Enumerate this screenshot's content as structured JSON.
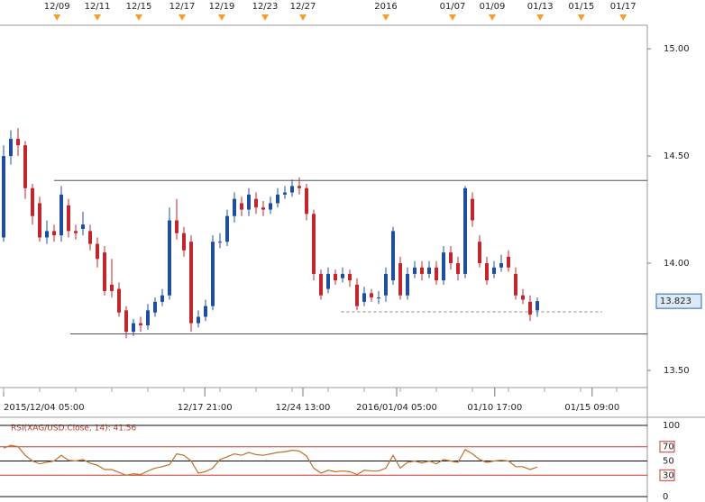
{
  "chart_data": [
    {
      "type": "candlestick",
      "open": [
        14.12,
        14.5,
        14.58,
        14.55,
        14.35,
        14.28,
        14.12,
        14.15,
        14.13,
        14.27,
        14.15,
        14.16,
        14.15,
        14.09,
        14.05,
        13.9,
        13.88,
        13.78,
        13.68,
        13.72,
        13.71,
        13.77,
        13.82,
        13.85,
        14.2,
        14.14,
        14.1,
        13.72,
        13.75,
        13.8,
        14.1,
        14.1,
        14.22,
        14.28,
        14.25,
        14.3,
        14.26,
        14.25,
        14.28,
        14.32,
        14.33,
        14.36,
        14.35,
        14.23,
        13.95,
        13.88,
        13.95,
        13.93,
        13.95,
        13.9,
        13.82,
        13.86,
        13.84,
        13.85,
        13.92,
        14.0,
        13.85,
        13.95,
        13.98,
        13.95,
        13.98,
        13.92,
        14.05,
        14.0,
        13.95,
        14.3,
        14.1,
        14.0,
        13.95,
        13.98,
        14.03,
        13.95,
        13.85,
        13.82,
        13.78
      ],
      "high": [
        14.55,
        14.62,
        14.63,
        14.57,
        14.37,
        14.31,
        14.2,
        14.18,
        14.36,
        14.3,
        14.18,
        14.24,
        14.18,
        14.12,
        14.08,
        14.02,
        13.91,
        13.8,
        13.74,
        13.75,
        13.81,
        13.84,
        13.88,
        14.26,
        14.3,
        14.17,
        14.13,
        13.78,
        13.83,
        14.13,
        14.14,
        14.25,
        14.33,
        14.31,
        14.35,
        14.33,
        14.29,
        14.31,
        14.35,
        14.36,
        14.39,
        14.4,
        14.37,
        14.25,
        13.97,
        13.98,
        13.97,
        13.98,
        13.97,
        13.93,
        13.89,
        13.88,
        13.87,
        13.98,
        14.17,
        14.03,
        13.98,
        14.01,
        14.01,
        14.01,
        14.01,
        14.08,
        14.08,
        14.03,
        14.36,
        14.33,
        14.13,
        14.03,
        14.01,
        14.04,
        14.06,
        13.98,
        13.88,
        13.85,
        13.84
      ],
      "low": [
        14.1,
        14.46,
        14.5,
        14.3,
        14.18,
        14.1,
        14.09,
        14.1,
        14.1,
        14.12,
        14.11,
        14.13,
        14.06,
        13.98,
        13.85,
        13.84,
        13.75,
        13.65,
        13.66,
        13.68,
        13.69,
        13.75,
        13.8,
        13.83,
        14.11,
        14.03,
        13.68,
        13.7,
        13.73,
        13.78,
        14.07,
        14.08,
        14.19,
        14.22,
        14.22,
        14.23,
        14.22,
        14.23,
        14.26,
        14.3,
        14.31,
        14.32,
        14.2,
        13.92,
        13.83,
        13.86,
        13.9,
        13.91,
        13.89,
        13.78,
        13.8,
        13.82,
        13.81,
        13.82,
        13.9,
        13.83,
        13.83,
        13.93,
        13.92,
        13.93,
        13.9,
        13.9,
        13.97,
        13.92,
        13.93,
        14.17,
        13.98,
        13.9,
        13.93,
        13.96,
        13.96,
        13.83,
        13.81,
        13.73,
        13.75
      ],
      "close": [
        14.5,
        14.58,
        14.55,
        14.35,
        14.22,
        14.12,
        14.15,
        14.13,
        14.32,
        14.15,
        14.14,
        14.18,
        14.09,
        14.02,
        13.87,
        13.87,
        13.77,
        13.68,
        13.72,
        13.71,
        13.78,
        13.82,
        13.85,
        14.2,
        14.14,
        14.06,
        13.72,
        13.75,
        13.8,
        14.1,
        14.1,
        14.22,
        14.3,
        14.25,
        14.32,
        14.26,
        14.25,
        14.28,
        14.32,
        14.33,
        14.36,
        14.35,
        14.23,
        13.95,
        13.85,
        13.95,
        13.92,
        13.95,
        13.92,
        13.8,
        13.86,
        13.84,
        13.84,
        13.95,
        14.15,
        13.85,
        13.95,
        13.98,
        13.95,
        13.98,
        13.92,
        14.05,
        14.0,
        13.95,
        14.35,
        14.2,
        14.0,
        13.92,
        13.98,
        14.0,
        13.98,
        13.85,
        13.83,
        13.76,
        13.823
      ],
      "up_color": "#1f4e9c",
      "down_color": "#c0262c",
      "xlim": [
        -0.5,
        89.25
      ],
      "ylim": [
        13.42,
        15.11
      ],
      "yticks": [
        {
          "value": 13.5,
          "label": "13.50"
        },
        {
          "value": 14,
          "label": "14.00"
        },
        {
          "value": 14.5,
          "label": "14.50"
        },
        {
          "value": 15,
          "label": "15.00"
        }
      ],
      "xticks": [
        {
          "value": 0,
          "label": "2015/12/04 05:00"
        },
        {
          "value": 27.9,
          "label": "12/17 21:00"
        },
        {
          "value": 41.5,
          "label": "12/24 13:00"
        },
        {
          "value": 54.5,
          "label": "2016/01/04 05:00"
        },
        {
          "value": 68.1,
          "label": "01/10 17:00"
        },
        {
          "value": 81.6,
          "label": "01/15 09:00"
        }
      ],
      "top_markers": [
        {
          "value": 7.4,
          "label": "12/09"
        },
        {
          "value": 13,
          "label": "12/11"
        },
        {
          "value": 18.75,
          "label": "12/15"
        },
        {
          "value": 24.75,
          "label": "12/17"
        },
        {
          "value": 30.25,
          "label": "12/19"
        },
        {
          "value": 36.25,
          "label": "12/23"
        },
        {
          "value": 41.5,
          "label": "12/27"
        },
        {
          "value": 53,
          "label": "2016"
        },
        {
          "value": 62.25,
          "label": "01/07"
        },
        {
          "value": 67.75,
          "label": "01/09"
        },
        {
          "value": 74.4,
          "label": "01/13"
        },
        {
          "value": 80.1,
          "label": "01/15"
        },
        {
          "value": 85.9,
          "label": "01/17"
        }
      ],
      "lines": [
        {
          "value": 14.386,
          "start": 7,
          "style": "solid"
        },
        {
          "value": 13.67,
          "start": 9.25,
          "style": "solid"
        },
        {
          "value": 13.773,
          "start": 46.8,
          "end": 83,
          "style": "dashed"
        }
      ]
    },
    {
      "type": "line",
      "title": "RSI(XAG/USD.Close, 14): 41.56",
      "values": [
        68,
        72,
        70,
        58,
        50,
        46,
        48,
        50,
        58,
        51,
        50,
        52,
        47,
        44,
        38,
        38,
        34,
        30,
        32,
        31,
        36,
        40,
        42,
        45,
        60,
        58,
        50,
        33,
        35,
        40,
        52,
        56,
        60,
        58,
        62,
        59,
        58,
        60,
        62,
        63,
        65,
        64,
        57,
        40,
        33,
        37,
        35,
        36,
        35,
        31,
        37,
        36,
        36,
        40,
        58,
        40,
        48,
        50,
        47,
        50,
        46,
        52,
        50,
        48,
        66,
        60,
        52,
        48,
        50,
        51,
        50,
        42,
        42,
        38,
        41.56
      ],
      "color": "#b8742c",
      "level_color": "#d0352c",
      "xlim": [
        -0.5,
        89.25
      ],
      "ylim": [
        0,
        100
      ],
      "yticks": [
        0,
        30,
        50,
        70,
        100
      ],
      "levels": [
        30,
        70
      ]
    }
  ]
}
